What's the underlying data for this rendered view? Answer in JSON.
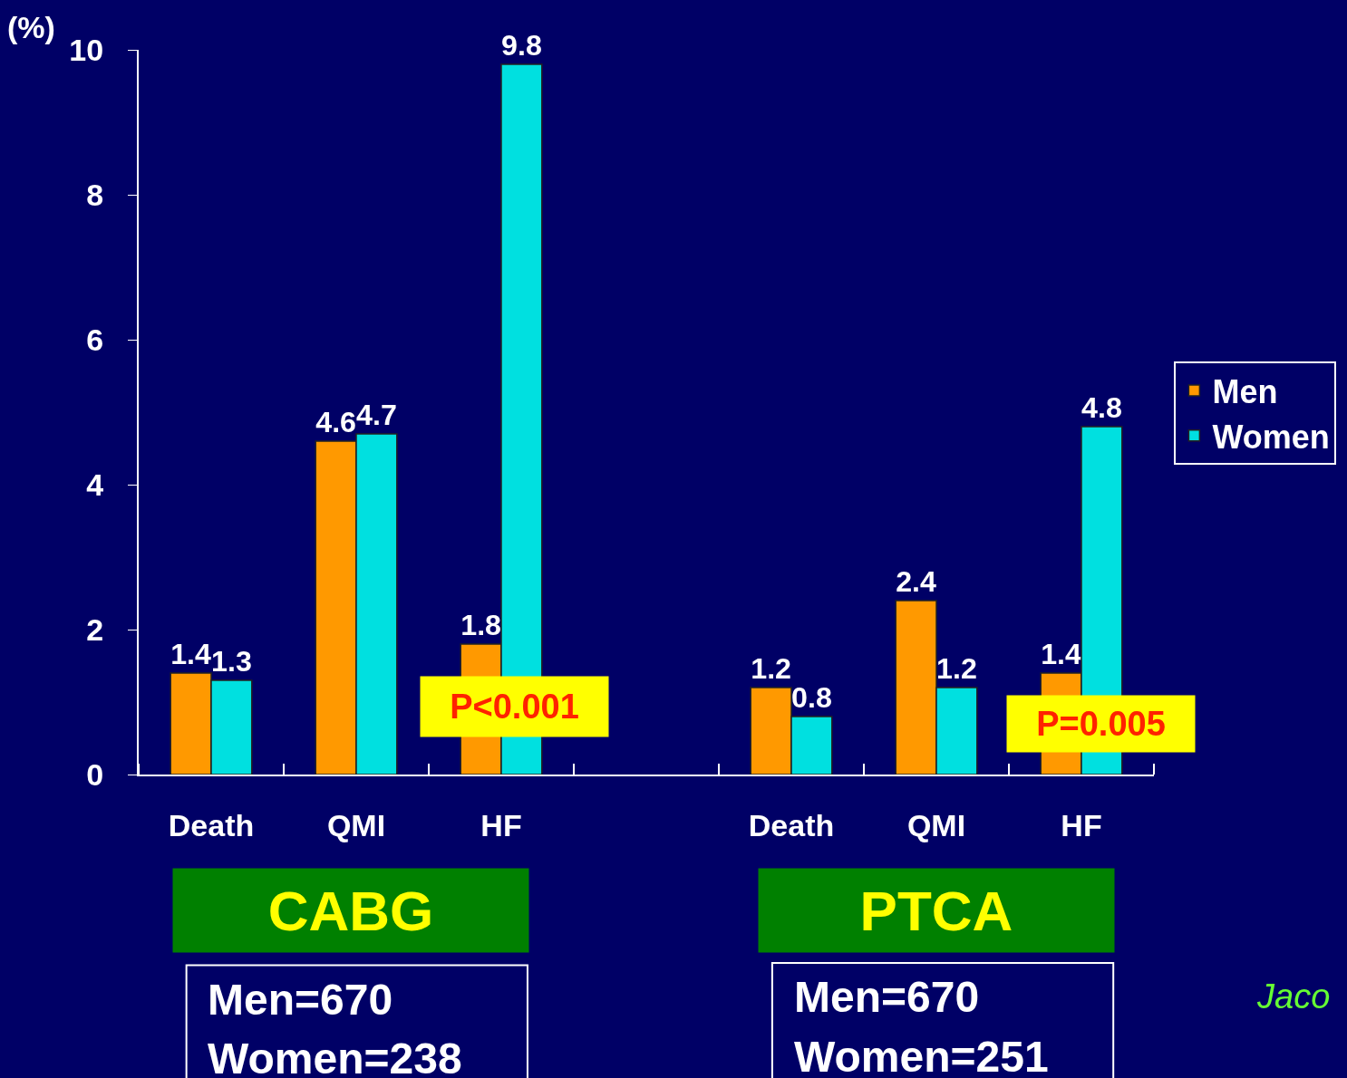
{
  "chart_data": {
    "type": "bar",
    "ylabel": "(%)",
    "categories": [
      "Death",
      "QMI",
      "HF",
      null,
      "Death",
      "QMI",
      "HF"
    ],
    "series": [
      {
        "name": "Men",
        "color": "#ff9900",
        "values": [
          1.4,
          4.6,
          1.8,
          null,
          1.2,
          2.4,
          1.4
        ]
      },
      {
        "name": "Women",
        "color": "#00e0e0",
        "values": [
          1.3,
          4.7,
          9.8,
          null,
          0.8,
          1.2,
          4.8
        ]
      }
    ],
    "ylim": [
      0,
      10
    ],
    "yticks": [
      0,
      2,
      4,
      6,
      8,
      10
    ],
    "data_labels": true,
    "grid": false,
    "legend": "right",
    "annotations": [
      "P<0.001",
      "P=0.005",
      "CABG",
      "PTCA",
      "Men=670",
      "Women=238",
      "Men=670",
      "Women=251",
      "Jaco"
    ]
  }
}
